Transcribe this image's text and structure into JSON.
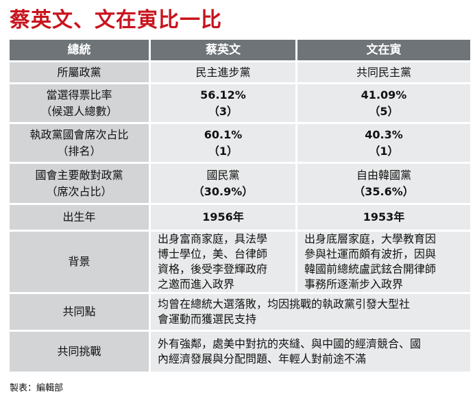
{
  "title": "蔡英文、文在寅比一比",
  "header": {
    "col_label": "總統",
    "col_a": "蔡英文",
    "col_b": "文在寅"
  },
  "rows": {
    "party": {
      "label": "所屬政黨",
      "a": "民主進步黨",
      "b": "共同民主黨"
    },
    "vote_share": {
      "label_line1": "當選得票比率",
      "label_line2": "（候選人總數）",
      "a_line1": "56.12%",
      "a_line2": "（3）",
      "b_line1": "41.09%",
      "b_line2": "（5）"
    },
    "seat_share": {
      "label_line1": "執政黨國會席次占比",
      "label_line2": "（排名）",
      "a_line1": "60.1%",
      "a_line2": "（1）",
      "b_line1": "40.3%",
      "b_line2": "（1）"
    },
    "rival_party": {
      "label_line1": "國會主要敵對政黨",
      "label_line2": "（席次占比）",
      "a_line1": "國民黨",
      "a_line2": "（30.9%）",
      "b_line1": "自由韓國黨",
      "b_line2": "（35.6%）"
    },
    "birth_year": {
      "label": "出生年",
      "a": "1956年",
      "b": "1953年"
    },
    "background": {
      "label": "背景",
      "a_lines": [
        "出身富商家庭，具法學",
        "博士學位，美、台律師",
        "資格，後受李登輝政府",
        "之邀而進入政界"
      ],
      "b_lines": [
        "出身底層家庭，大學教育因",
        "參與社運而頗有波折，因與",
        "韓國前總統盧武鉉合開律師",
        "事務所逐漸步入政界"
      ]
    },
    "common_points": {
      "label": "共同點",
      "lines": [
        "均曾在總統大選落敗，均因挑戰的執政黨引發大型社",
        "會運動而獲選民支持"
      ]
    },
    "common_challenges": {
      "label": "共同挑戰",
      "lines": [
        "外有強鄰，處美中對抗的夾縫、與中國的經濟競合、國",
        "內經濟發展與分配問題、年輕人對前途不滿"
      ]
    }
  },
  "footer": "製表：編輯部"
}
